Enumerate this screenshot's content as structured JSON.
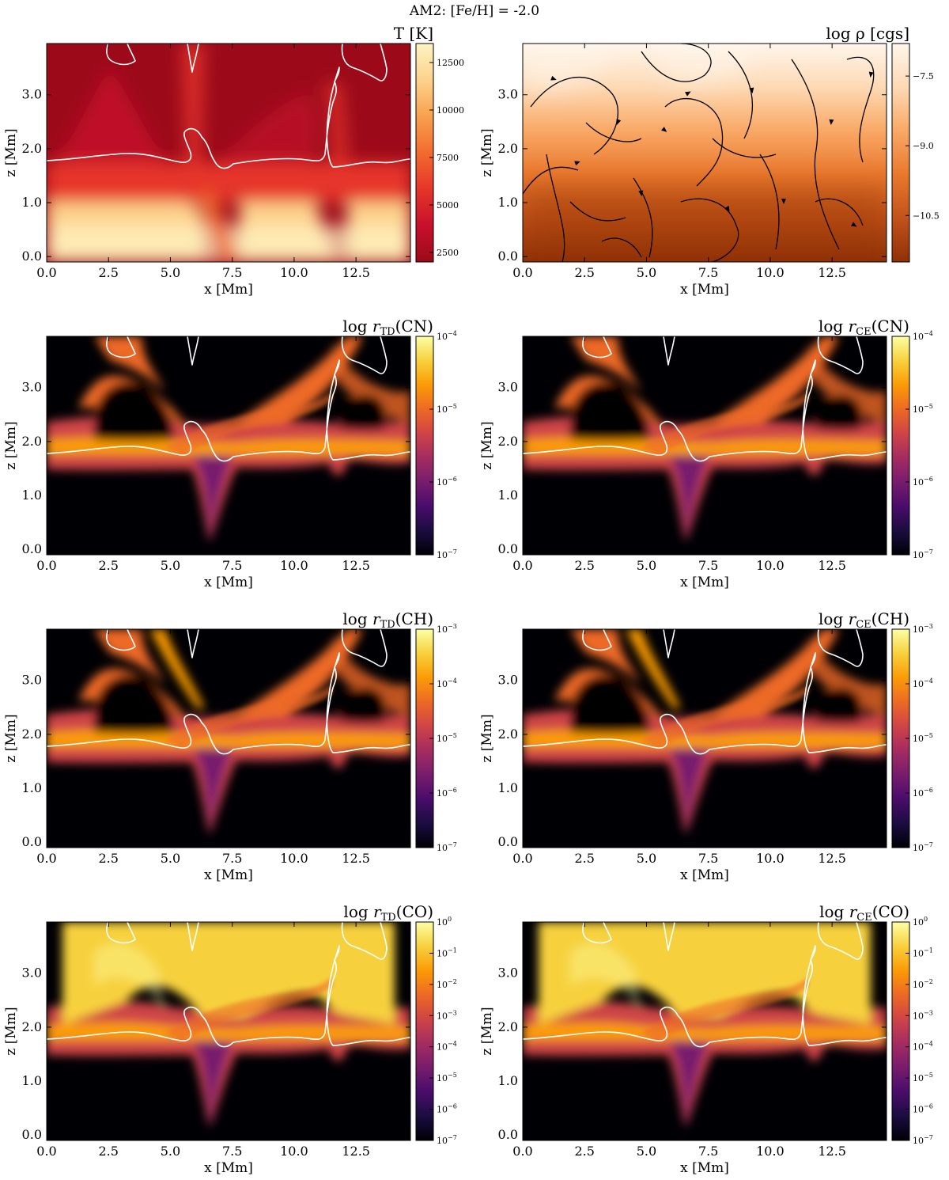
{
  "figure_title": "AM2: [Fe/H] = -2.0",
  "colors": {
    "inferno": [
      "#000004",
      "#1b0c41",
      "#4a0c6b",
      "#781c6d",
      "#a52c60",
      "#cf4446",
      "#ed6925",
      "#fb9b06",
      "#f7d13d",
      "#fcffa4"
    ],
    "temperature_map": [
      "#9c0a1a",
      "#c8102c",
      "#e6352a",
      "#f26b2f",
      "#f9a04e",
      "#fdd28c",
      "#fef4c4"
    ],
    "density_map": [
      "#fff6ec",
      "#fdd9b4",
      "#f9a866",
      "#e9782d",
      "#c2521a",
      "#8f3008"
    ],
    "contour": "#ffffff",
    "streamline": "#000000"
  },
  "chart_data": [
    {
      "id": "temperature",
      "type": "heatmap",
      "title": "T [K]",
      "xlabel": "x [Mm]",
      "ylabel": "z [Mm]",
      "xlim": [
        0,
        14.7
      ],
      "ylim": [
        -0.1,
        3.95
      ],
      "xticks": [
        "0.0",
        "2.5",
        "5.0",
        "7.5",
        "10.0",
        "12.5"
      ],
      "yticks": [
        "0.0",
        "1.0",
        "2.0",
        "3.0"
      ],
      "colorbar": {
        "scale": "linear",
        "range": [
          2000,
          13500
        ],
        "ticks": [
          "2500",
          "5000",
          "7500",
          "10000",
          "12500"
        ]
      },
      "colormap": "temperature",
      "contours": true,
      "streamlines": false
    },
    {
      "id": "density",
      "type": "heatmap",
      "title": "log ρ [cgs]",
      "xlabel": "x [Mm]",
      "ylabel": "z [Mm]",
      "xlim": [
        0,
        14.7
      ],
      "ylim": [
        -0.1,
        3.95
      ],
      "xticks": [
        "0.0",
        "2.5",
        "5.0",
        "7.5",
        "10.0",
        "12.5"
      ],
      "yticks": [
        "0.0",
        "1.0",
        "2.0",
        "3.0"
      ],
      "colorbar": {
        "scale": "linear",
        "range": [
          -11.5,
          -6.8
        ],
        "ticks": [
          "−7.5",
          "−9.0",
          "−10.5"
        ]
      },
      "colormap": "density",
      "contours": false,
      "streamlines": true
    },
    {
      "id": "rTD_CN",
      "type": "heatmap",
      "title": "log r_TD(CN)",
      "xlabel": "x [Mm]",
      "ylabel": "z [Mm]",
      "xlim": [
        0,
        14.7
      ],
      "ylim": [
        -0.1,
        3.95
      ],
      "xticks": [
        "0.0",
        "2.5",
        "5.0",
        "7.5",
        "10.0",
        "12.5"
      ],
      "yticks": [
        "0.0",
        "1.0",
        "2.0",
        "3.0"
      ],
      "colorbar": {
        "scale": "log",
        "range": [
          1e-07,
          0.0001
        ],
        "ticks": [
          "10^-4",
          "10^-5",
          "10^-6",
          "10^-7"
        ]
      },
      "colormap": "inferno",
      "contours": true,
      "streamlines": false
    },
    {
      "id": "rCE_CN",
      "type": "heatmap",
      "title": "log r_CE(CN)",
      "xlabel": "x [Mm]",
      "ylabel": "z [Mm]",
      "xlim": [
        0,
        14.7
      ],
      "ylim": [
        -0.1,
        3.95
      ],
      "xticks": [
        "0.0",
        "2.5",
        "5.0",
        "7.5",
        "10.0",
        "12.5"
      ],
      "yticks": [
        "0.0",
        "1.0",
        "2.0",
        "3.0"
      ],
      "colorbar": {
        "scale": "log",
        "range": [
          1e-07,
          0.0001
        ],
        "ticks": [
          "10^-4",
          "10^-5",
          "10^-6",
          "10^-7"
        ]
      },
      "colormap": "inferno",
      "contours": true,
      "streamlines": false
    },
    {
      "id": "rTD_CH",
      "type": "heatmap",
      "title": "log r_TD(CH)",
      "xlabel": "x [Mm]",
      "ylabel": "z [Mm]",
      "xlim": [
        0,
        14.7
      ],
      "ylim": [
        -0.1,
        3.95
      ],
      "xticks": [
        "0.0",
        "2.5",
        "5.0",
        "7.5",
        "10.0",
        "12.5"
      ],
      "yticks": [
        "0.0",
        "1.0",
        "2.0",
        "3.0"
      ],
      "colorbar": {
        "scale": "log",
        "range": [
          1e-07,
          0.001
        ],
        "ticks": [
          "10^-3",
          "10^-4",
          "10^-5",
          "10^-6",
          "10^-7"
        ]
      },
      "colormap": "inferno",
      "contours": true,
      "streamlines": false
    },
    {
      "id": "rCE_CH",
      "type": "heatmap",
      "title": "log r_CE(CH)",
      "xlabel": "x [Mm]",
      "ylabel": "z [Mm]",
      "xlim": [
        0,
        14.7
      ],
      "ylim": [
        -0.1,
        3.95
      ],
      "xticks": [
        "0.0",
        "2.5",
        "5.0",
        "7.5",
        "10.0",
        "12.5"
      ],
      "yticks": [
        "0.0",
        "1.0",
        "2.0",
        "3.0"
      ],
      "colorbar": {
        "scale": "log",
        "range": [
          1e-07,
          0.001
        ],
        "ticks": [
          "10^-3",
          "10^-4",
          "10^-5",
          "10^-6",
          "10^-7"
        ]
      },
      "colormap": "inferno",
      "contours": true,
      "streamlines": false
    },
    {
      "id": "rTD_CO",
      "type": "heatmap",
      "title": "log r_TD(CO)",
      "xlabel": "x [Mm]",
      "ylabel": "z [Mm]",
      "xlim": [
        0,
        14.7
      ],
      "ylim": [
        -0.1,
        3.95
      ],
      "xticks": [
        "0.0",
        "2.5",
        "5.0",
        "7.5",
        "10.0",
        "12.5"
      ],
      "yticks": [
        "0.0",
        "1.0",
        "2.0",
        "3.0"
      ],
      "colorbar": {
        "scale": "log",
        "range": [
          1e-07,
          1
        ],
        "ticks": [
          "10^0",
          "10^-1",
          "10^-2",
          "10^-3",
          "10^-4",
          "10^-5",
          "10^-6",
          "10^-7"
        ]
      },
      "colormap": "inferno",
      "contours": true,
      "streamlines": false
    },
    {
      "id": "rCE_CO",
      "type": "heatmap",
      "title": "log r_CE(CO)",
      "xlabel": "x [Mm]",
      "ylabel": "z [Mm]",
      "xlim": [
        0,
        14.7
      ],
      "ylim": [
        -0.1,
        3.95
      ],
      "xticks": [
        "0.0",
        "2.5",
        "5.0",
        "7.5",
        "10.0",
        "12.5"
      ],
      "yticks": [
        "0.0",
        "1.0",
        "2.0",
        "3.0"
      ],
      "colorbar": {
        "scale": "log",
        "range": [
          1e-07,
          1
        ],
        "ticks": [
          "10^0",
          "10^-1",
          "10^-2",
          "10^-3",
          "10^-4",
          "10^-5",
          "10^-6",
          "10^-7"
        ]
      },
      "colormap": "inferno",
      "contours": true,
      "streamlines": false
    }
  ]
}
